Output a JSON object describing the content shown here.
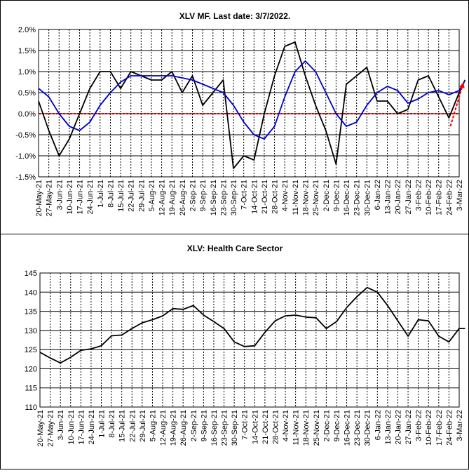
{
  "charts": {
    "top": {
      "title": "XLV MF. Last date: 3/7/2022.",
      "yticks": [
        "2.0%",
        "1.5%",
        "1.0%",
        "0.5%",
        "0.0%",
        "-0.5%",
        "-1.0%",
        "-1.5%"
      ]
    },
    "bottom": {
      "title": "XLV: Health Care Sector",
      "yticks": [
        "145",
        "140",
        "135",
        "130",
        "125",
        "120",
        "115",
        "110"
      ]
    },
    "xtick_labels": [
      "20-May-21",
      "27-May-21",
      "3-Jun-21",
      "10-Jun-21",
      "17-Jun-21",
      "24-Jun-21",
      "1-Jul-21",
      "8-Jul-21",
      "15-Jul-21",
      "22-Jul-21",
      "29-Jul-21",
      "5-Aug-21",
      "12-Aug-21",
      "19-Aug-21",
      "26-Aug-21",
      "2-Sep-21",
      "9-Sep-21",
      "16-Sep-21",
      "23-Sep-21",
      "30-Sep-21",
      "7-Oct-21",
      "14-Oct-21",
      "21-Oct-21",
      "28-Oct-21",
      "4-Nov-21",
      "11-Nov-21",
      "18-Nov-21",
      "25-Nov-21",
      "2-Dec-21",
      "9-Dec-21",
      "16-Dec-21",
      "23-Dec-21",
      "30-Dec-21",
      "6-Jan-22",
      "13-Jan-22",
      "20-Jan-22",
      "27-Jan-22",
      "3-Feb-22",
      "10-Feb-22",
      "17-Feb-22",
      "24-Feb-22",
      "3-Mar-22"
    ],
    "colors": {
      "mf_line": "#000000",
      "ma_line": "#0000cc",
      "zero_line": "#cc0000",
      "arrow": "#ff0000",
      "price_line": "#000000",
      "grid": "#000000"
    }
  },
  "chart_data": [
    {
      "type": "line",
      "title": "XLV MF. Last date: 3/7/2022.",
      "x": [
        "2021-05-20",
        "2021-05-27",
        "2021-06-03",
        "2021-06-10",
        "2021-06-17",
        "2021-06-24",
        "2021-07-01",
        "2021-07-08",
        "2021-07-15",
        "2021-07-22",
        "2021-07-29",
        "2021-08-05",
        "2021-08-12",
        "2021-08-19",
        "2021-08-26",
        "2021-09-02",
        "2021-09-09",
        "2021-09-16",
        "2021-09-23",
        "2021-09-30",
        "2021-10-07",
        "2021-10-14",
        "2021-10-21",
        "2021-10-28",
        "2021-11-04",
        "2021-11-11",
        "2021-11-18",
        "2021-11-25",
        "2021-12-02",
        "2021-12-09",
        "2021-12-16",
        "2021-12-23",
        "2021-12-30",
        "2022-01-06",
        "2022-01-13",
        "2022-01-20",
        "2022-01-27",
        "2022-02-03",
        "2022-02-10",
        "2022-02-17",
        "2022-02-24",
        "2022-03-03",
        "2022-03-07"
      ],
      "series": [
        {
          "values": [
            0.3,
            -0.4,
            -1.0,
            -0.6,
            0.0,
            0.6,
            1.0,
            1.0,
            0.6,
            1.0,
            0.9,
            0.8,
            0.8,
            1.0,
            0.5,
            0.9,
            0.2,
            0.5,
            0.8,
            -1.3,
            -1.0,
            -1.1,
            0.0,
            0.9,
            1.6,
            1.7,
            0.9,
            0.2,
            -0.4,
            -1.2,
            0.7,
            0.9,
            1.1,
            0.3,
            0.3,
            0.0,
            0.1,
            0.8,
            0.9,
            0.4,
            -0.1,
            0.5,
            0.8
          ]
        },
        {
          "values": [
            0.6,
            0.4,
            0.0,
            -0.3,
            -0.4,
            -0.2,
            0.2,
            0.5,
            0.75,
            0.9,
            0.9,
            0.9,
            0.9,
            0.9,
            0.85,
            0.8,
            0.7,
            0.6,
            0.5,
            0.2,
            -0.2,
            -0.5,
            -0.6,
            -0.3,
            0.4,
            1.0,
            1.25,
            1.0,
            0.5,
            0.0,
            -0.3,
            -0.2,
            0.2,
            0.5,
            0.65,
            0.55,
            0.25,
            0.35,
            0.5,
            0.55,
            0.45,
            0.55,
            0.8
          ]
        }
      ],
      "ylim": [
        -1.5,
        2.0
      ],
      "reference_line": 0.0,
      "annotation": "red dashed arrow rising over the last week",
      "grid": true
    },
    {
      "type": "line",
      "title": "XLV: Health Care Sector",
      "x": [
        "2021-05-20",
        "2021-05-27",
        "2021-06-03",
        "2021-06-10",
        "2021-06-17",
        "2021-06-24",
        "2021-07-01",
        "2021-07-08",
        "2021-07-15",
        "2021-07-22",
        "2021-07-29",
        "2021-08-05",
        "2021-08-12",
        "2021-08-19",
        "2021-08-26",
        "2021-09-02",
        "2021-09-09",
        "2021-09-16",
        "2021-09-23",
        "2021-09-30",
        "2021-10-07",
        "2021-10-14",
        "2021-10-21",
        "2021-10-28",
        "2021-11-04",
        "2021-11-11",
        "2021-11-18",
        "2021-11-25",
        "2021-12-02",
        "2021-12-09",
        "2021-12-16",
        "2021-12-23",
        "2021-12-30",
        "2022-01-06",
        "2022-01-13",
        "2022-01-20",
        "2022-01-27",
        "2022-02-03",
        "2022-02-10",
        "2022-02-17",
        "2022-02-24",
        "2022-03-03",
        "2022-03-07"
      ],
      "series": [
        {
          "values": [
            124.3,
            122.8,
            121.5,
            123.0,
            124.8,
            125.2,
            126.0,
            128.6,
            128.8,
            130.5,
            132.0,
            132.8,
            133.8,
            135.7,
            135.5,
            136.5,
            134.0,
            132.3,
            130.5,
            127.0,
            125.8,
            126.0,
            129.5,
            132.5,
            133.8,
            134.0,
            133.5,
            133.3,
            130.5,
            132.3,
            136.0,
            138.8,
            141.2,
            140.0,
            136.5,
            132.5,
            128.5,
            132.8,
            132.5,
            128.5,
            127.0,
            130.5,
            130.5
          ]
        }
      ],
      "ylim": [
        110,
        145
      ],
      "grid": true
    }
  ]
}
